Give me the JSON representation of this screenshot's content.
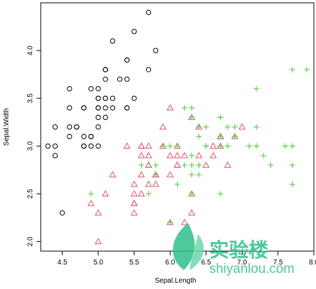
{
  "chart_data": {
    "type": "scatter",
    "title": "",
    "xlabel": "Sepal.Length",
    "ylabel": "Sepal.Width",
    "xlim": [
      4.2,
      8.0
    ],
    "ylim": [
      1.9,
      4.5
    ],
    "xticks": [
      4.5,
      5.0,
      5.5,
      6.0,
      6.5,
      7.0,
      7.5,
      8.0
    ],
    "yticks": [
      2.0,
      2.5,
      3.0,
      3.5,
      4.0
    ],
    "grid": false,
    "legend": "none",
    "series": [
      {
        "marker": "circle",
        "color": "#000000",
        "x": [
          5.1,
          4.9,
          4.7,
          4.6,
          5.0,
          5.4,
          4.6,
          5.0,
          4.4,
          4.9,
          5.4,
          4.8,
          4.8,
          4.3,
          5.8,
          5.7,
          5.4,
          5.1,
          5.7,
          5.1,
          5.4,
          5.1,
          4.6,
          5.1,
          4.8,
          5.0,
          5.0,
          5.2,
          5.2,
          4.7,
          4.8,
          5.4,
          5.2,
          5.5,
          4.9,
          5.0,
          5.5,
          4.9,
          4.4,
          5.1,
          5.0,
          4.5,
          4.4,
          5.0,
          5.1,
          4.8,
          5.1,
          4.6,
          5.3,
          5.0
        ],
        "y": [
          3.5,
          3.0,
          3.2,
          3.1,
          3.6,
          3.9,
          3.4,
          3.4,
          2.9,
          3.1,
          3.7,
          3.4,
          3.0,
          3.0,
          4.0,
          4.4,
          3.9,
          3.5,
          3.8,
          3.8,
          3.4,
          3.7,
          3.6,
          3.3,
          3.4,
          3.0,
          3.4,
          3.5,
          3.4,
          3.2,
          3.1,
          3.4,
          4.1,
          4.2,
          3.1,
          3.2,
          3.5,
          3.6,
          3.0,
          3.4,
          3.5,
          2.3,
          3.2,
          3.5,
          3.8,
          3.0,
          3.8,
          3.2,
          3.7,
          3.3
        ]
      },
      {
        "marker": "triangle",
        "color": "#df536b",
        "x": [
          7.0,
          6.4,
          6.9,
          5.5,
          6.5,
          5.7,
          6.3,
          4.9,
          6.6,
          5.2,
          5.0,
          5.9,
          6.0,
          6.1,
          5.6,
          6.7,
          5.6,
          5.8,
          6.2,
          5.6,
          5.9,
          6.1,
          6.3,
          6.1,
          6.4,
          6.6,
          6.8,
          6.7,
          6.0,
          5.7,
          5.5,
          5.5,
          5.8,
          6.0,
          5.4,
          6.0,
          6.7,
          6.3,
          5.6,
          5.5,
          5.5,
          6.1,
          5.8,
          5.0,
          5.6,
          5.7,
          5.7,
          6.2,
          5.1,
          5.7
        ],
        "y": [
          3.2,
          3.2,
          3.1,
          2.3,
          2.8,
          2.8,
          3.3,
          2.4,
          2.9,
          2.7,
          2.0,
          3.0,
          2.2,
          2.9,
          2.9,
          3.1,
          3.0,
          2.7,
          2.2,
          2.5,
          3.2,
          2.8,
          2.5,
          2.8,
          2.9,
          3.0,
          2.8,
          3.0,
          2.9,
          2.6,
          2.4,
          2.4,
          2.7,
          2.7,
          3.0,
          3.4,
          3.1,
          2.3,
          3.0,
          2.5,
          2.6,
          3.0,
          2.6,
          2.3,
          2.7,
          3.0,
          2.9,
          2.9,
          2.5,
          2.8
        ]
      },
      {
        "marker": "plus",
        "color": "#61d04f",
        "x": [
          6.3,
          5.8,
          7.1,
          6.3,
          6.5,
          7.6,
          4.9,
          7.3,
          6.7,
          7.2,
          6.5,
          6.4,
          6.8,
          5.7,
          5.8,
          6.4,
          6.5,
          7.7,
          7.7,
          6.0,
          6.9,
          5.6,
          7.7,
          6.3,
          6.7,
          7.2,
          6.2,
          6.1,
          6.4,
          7.2,
          7.4,
          7.9,
          6.4,
          6.3,
          6.1,
          7.7,
          6.3,
          6.4,
          6.0,
          6.9,
          6.7,
          6.9,
          5.8,
          6.8,
          6.7,
          6.7,
          6.3,
          6.5,
          6.2,
          5.9
        ],
        "y": [
          3.3,
          2.7,
          3.0,
          2.9,
          3.0,
          3.0,
          2.5,
          2.9,
          2.5,
          3.6,
          3.2,
          2.7,
          3.0,
          2.5,
          2.8,
          3.2,
          3.0,
          3.8,
          2.6,
          2.2,
          3.2,
          2.8,
          2.8,
          2.7,
          3.3,
          3.2,
          2.8,
          3.0,
          2.8,
          3.0,
          2.8,
          3.8,
          2.8,
          2.8,
          2.6,
          3.0,
          3.4,
          3.1,
          3.0,
          3.1,
          3.1,
          3.1,
          2.7,
          3.2,
          3.3,
          3.0,
          2.5,
          3.0,
          3.4,
          3.0
        ]
      }
    ]
  },
  "watermark": {
    "text": "实验楼",
    "subtext": "shiyanlou.com",
    "logo_icon": "leaf-logo-icon",
    "color": "#2fc08a"
  }
}
